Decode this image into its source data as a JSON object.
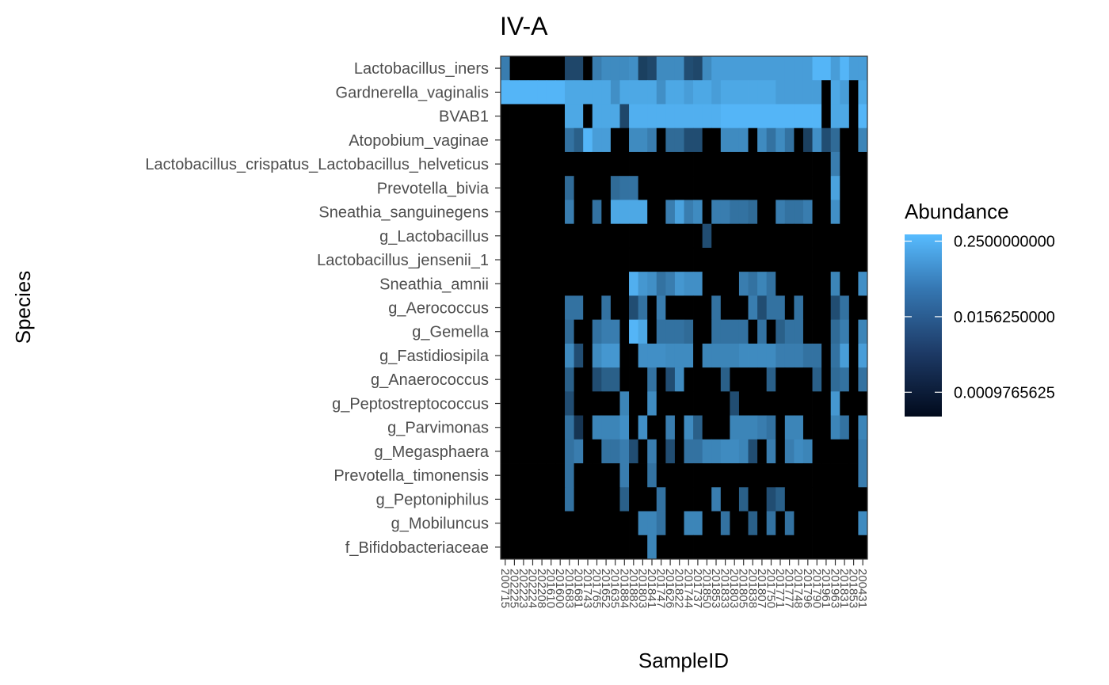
{
  "chart_data": {
    "type": "heatmap",
    "title": "IV-A",
    "xlabel": "SampleID",
    "ylabel": "Species",
    "legend": {
      "title": "Abundance",
      "position": "right",
      "scale": "log2",
      "breaks": [
        0.25,
        0.015625,
        0.0009765625
      ],
      "break_labels": [
        "0.2500000000",
        "0.0156250000",
        "0.0009765625"
      ],
      "low_color": "#010a1c",
      "high_color": "#57bcff",
      "zero_color": "#000000"
    },
    "species": [
      "Lactobacillus_iners",
      "Gardnerella_vaginalis",
      "BVAB1",
      "Atopobium_vaginae",
      "Lactobacillus_crispatus_Lactobacillus_helveticus",
      "Prevotella_bivia",
      "Sneathia_sanguinegens",
      "g_Lactobacillus",
      "Lactobacillus_jensenii_1",
      "Sneathia_amnii",
      "g_Aerococcus",
      "g_Gemella",
      "g_Fastidiosipila",
      "g_Anaerococcus",
      "g_Peptostreptococcus",
      "g_Parvimonas",
      "g_Megasphaera",
      "Prevotella_timonensis",
      "g_Peptoniphilus",
      "g_Mobiluncus",
      "f_Bifidobacteriaceae"
    ],
    "samples": [
      "200715",
      "202225",
      "202223",
      "202224",
      "202208",
      "201610",
      "201600",
      "201683",
      "201681",
      "201743",
      "201765",
      "201652",
      "201635",
      "201884",
      "201882",
      "201803",
      "201841",
      "201747",
      "201626",
      "201822",
      "201744",
      "201737",
      "201850",
      "201853",
      "201833",
      "201803",
      "201805",
      "201838",
      "201807",
      "201750",
      "201771",
      "201777",
      "201748",
      "201796",
      "201790",
      "201961",
      "201963",
      "201831",
      "201853",
      "200431"
    ],
    "cells": [
      [
        "0.03",
        "0",
        "0",
        "0",
        "0",
        "0",
        "0",
        "0.004",
        "0.004",
        "0",
        "0.03",
        "0.05",
        "0.05",
        "0.05",
        "0.06",
        "0.003",
        "0.004",
        "0.05",
        "0.05",
        "0.05",
        "0.005",
        "0.004",
        "0.05",
        "0.1",
        "0.1",
        "0.1",
        "0.1",
        "0.1",
        "0.1",
        "0.1",
        "0.1",
        "0.1",
        "0.1",
        "0.1",
        "0.25",
        "0.25",
        "0.1",
        "0.25",
        "0.1",
        "0.1"
      ],
      [
        "0.25",
        "0.25",
        "0.25",
        "0.25",
        "0.25",
        "0.25",
        "0.25",
        "0.15",
        "0.15",
        "0.15",
        "0.15",
        "0.15",
        "0.06",
        "0.15",
        "0.15",
        "0.15",
        "0.15",
        "0.06",
        "0.15",
        "0.15",
        "0.1",
        "0.15",
        "0.15",
        "0.1",
        "0.15",
        "0.15",
        "0.15",
        "0.15",
        "0.15",
        "0.15",
        "0.1",
        "0.1",
        "0.1",
        "0.1",
        "0.1",
        "0",
        "0.15",
        "0.1",
        "0",
        "0.15"
      ],
      [
        "0",
        "0",
        "0",
        "0",
        "0",
        "0",
        "0",
        "0.15",
        "0.15",
        "0",
        "0.15",
        "0.15",
        "0.15",
        "0.004",
        "0.2",
        "0.2",
        "0.2",
        "0.2",
        "0.2",
        "0.2",
        "0.2",
        "0.2",
        "0.2",
        "0.2",
        "0.25",
        "0.25",
        "0.25",
        "0.25",
        "0.25",
        "0.25",
        "0.25",
        "0.25",
        "0.25",
        "0.25",
        "0.25",
        "0",
        "0.15",
        "0.15",
        "0",
        "0.25"
      ],
      [
        "0",
        "0",
        "0",
        "0",
        "0",
        "0",
        "0",
        "0.02",
        "0.01",
        "0.25",
        "0.1",
        "0.1",
        "0",
        "0",
        "0.05",
        "0.05",
        "0.03",
        "0",
        "0.015",
        "0.015",
        "0.005",
        "0.005",
        "0",
        "0",
        "0.05",
        "0.05",
        "0.05",
        "0",
        "0.05",
        "0.02",
        "0.05",
        "0.02",
        "0",
        "0.003",
        "0.06",
        "0.005",
        "0.015",
        "0",
        "0",
        "0.04"
      ],
      [
        "0",
        "0",
        "0",
        "0",
        "0",
        "0",
        "0",
        "0",
        "0",
        "0",
        "0",
        "0",
        "0",
        "0",
        "0",
        "0",
        "0",
        "0",
        "0",
        "0",
        "0",
        "0",
        "0",
        "0",
        "0",
        "0",
        "0",
        "0",
        "0",
        "0",
        "0",
        "0",
        "0",
        "0",
        "0",
        "0",
        "0.03",
        "0",
        "0",
        "0"
      ],
      [
        "0",
        "0",
        "0",
        "0",
        "0",
        "0",
        "0",
        "0.015",
        "0",
        "0",
        "0",
        "0",
        "0.015",
        "0.02",
        "0.02",
        "0",
        "0",
        "0",
        "0",
        "0",
        "0",
        "0",
        "0",
        "0",
        "0",
        "0",
        "0",
        "0",
        "0",
        "0",
        "0",
        "0",
        "0",
        "0",
        "0",
        "0",
        "0.12",
        "0",
        "0",
        "0"
      ],
      [
        "0",
        "0",
        "0",
        "0",
        "0",
        "0",
        "0",
        "0.03",
        "0",
        "0",
        "0.02",
        "0",
        "0.15",
        "0.15",
        "0.15",
        "0.15",
        "0",
        "0",
        "0.03",
        "0.12",
        "0.03",
        "0.05",
        "0",
        "0.03",
        "0.03",
        "0.02",
        "0.02",
        "0.015",
        "0",
        "0",
        "0.03",
        "0.02",
        "0.02",
        "0.03",
        "0",
        "0",
        "0.06",
        "0",
        "0",
        "0"
      ],
      [
        "0",
        "0",
        "0",
        "0",
        "0",
        "0",
        "0",
        "0",
        "0",
        "0",
        "0",
        "0",
        "0",
        "0",
        "0",
        "0",
        "0",
        "0",
        "0",
        "0",
        "0",
        "0",
        "0.005",
        "0",
        "0",
        "0",
        "0",
        "0",
        "0",
        "0",
        "0",
        "0",
        "0",
        "0",
        "0",
        "0",
        "0",
        "0",
        "0",
        "0"
      ],
      [
        "0",
        "0",
        "0",
        "0",
        "0",
        "0",
        "0",
        "0",
        "0",
        "0",
        "0",
        "0",
        "0",
        "0",
        "0",
        "0",
        "0",
        "0",
        "0",
        "0",
        "0",
        "0",
        "0",
        "0",
        "0",
        "0",
        "0",
        "0",
        "0",
        "0",
        "0",
        "0",
        "0",
        "0",
        "0",
        "0",
        "0",
        "0",
        "0",
        "0"
      ],
      [
        "0",
        "0",
        "0",
        "0",
        "0",
        "0",
        "0",
        "0",
        "0",
        "0",
        "0",
        "0",
        "0",
        "0",
        "0.2",
        "0.08",
        "0.06",
        "0.02",
        "0.03",
        "0.08",
        "0.06",
        "0.06",
        "0",
        "0",
        "0",
        "0",
        "0.03",
        "0.02",
        "0.04",
        "0.02",
        "0",
        "0",
        "0",
        "0",
        "0",
        "0",
        "0.04",
        "0",
        "0",
        "0.06"
      ],
      [
        "0",
        "0",
        "0",
        "0",
        "0",
        "0",
        "0",
        "0.02",
        "0.02",
        "0",
        "0",
        "0.02",
        "0",
        "0",
        "0.005",
        "0.02",
        "0",
        "0.03",
        "0",
        "0",
        "0",
        "0",
        "0",
        "0.02",
        "0",
        "0",
        "0",
        "0.03",
        "0.005",
        "0.02",
        "0.02",
        "0",
        "0.02",
        "0",
        "0",
        "0",
        "0.005",
        "0.02",
        "0",
        "0"
      ],
      [
        "0",
        "0",
        "0",
        "0",
        "0",
        "0",
        "0",
        "0.015",
        "0",
        "0",
        "0.02",
        "0.03",
        "0.03",
        "0",
        "0.25",
        "0.15",
        "0",
        "0.02",
        "0.02",
        "0.02",
        "0.015",
        "0",
        "0",
        "0.02",
        "0.02",
        "0.02",
        "0.02",
        "0",
        "0.02",
        "0",
        "0.01",
        "0.02",
        "0.02",
        "0",
        "0",
        "0",
        "0.015",
        "0.03",
        "0",
        "0.04"
      ],
      [
        "0",
        "0",
        "0",
        "0",
        "0",
        "0",
        "0",
        "0.05",
        "0.005",
        "0",
        "0.05",
        "0.08",
        "0.08",
        "0",
        "0",
        "0.06",
        "0.06",
        "0.06",
        "0.05",
        "0.05",
        "0.05",
        "0",
        "0.04",
        "0.04",
        "0.04",
        "0.04",
        "0.05",
        "0.05",
        "0.05",
        "0.05",
        "0.03",
        "0.03",
        "0.03",
        "0.02",
        "0.02",
        "0",
        "0.02",
        "0.1",
        "0",
        "0.1"
      ],
      [
        "0",
        "0",
        "0",
        "0",
        "0",
        "0",
        "0",
        "0.01",
        "0",
        "0",
        "0.005",
        "0.01",
        "0.01",
        "0",
        "0",
        "0",
        "0.02",
        "0",
        "0.005",
        "0.05",
        "0",
        "0",
        "0",
        "0",
        "0.01",
        "0",
        "0",
        "0",
        "0",
        "0.01",
        "0",
        "0",
        "0",
        "0",
        "0.01",
        "0",
        "0.015",
        "0.02",
        "0",
        "0.02"
      ],
      [
        "0",
        "0",
        "0",
        "0",
        "0",
        "0",
        "0",
        "0.005",
        "0",
        "0",
        "0",
        "0",
        "0",
        "0.04",
        "0",
        "0",
        "0.05",
        "0",
        "0",
        "0",
        "0",
        "0",
        "0",
        "0",
        "0",
        "0.005",
        "0",
        "0",
        "0",
        "0",
        "0",
        "0",
        "0",
        "0",
        "0",
        "0",
        "0.08",
        "0",
        "0",
        "0"
      ],
      [
        "0",
        "0",
        "0",
        "0",
        "0",
        "0",
        "0",
        "0.02",
        "0.002",
        "0",
        "0.04",
        "0.04",
        "0.04",
        "0.06",
        "0",
        "0.06",
        "0",
        "0",
        "0.03",
        "0",
        "0.05",
        "0.01",
        "0",
        "0",
        "0",
        "0.04",
        "0.04",
        "0.04",
        "0.03",
        "0.02",
        "0",
        "0.04",
        "0.04",
        "0",
        "0",
        "0",
        "0.04",
        "0.02",
        "0",
        "0.04"
      ],
      [
        "0",
        "0",
        "0",
        "0",
        "0",
        "0",
        "0",
        "0.02",
        "0.03",
        "0",
        "0",
        "0.02",
        "0.02",
        "0.03",
        "0.005",
        "0",
        "0.03",
        "0",
        "0.005",
        "0",
        "0.02",
        "0.02",
        "0.04",
        "0.04",
        "0.05",
        "0.05",
        "0.04",
        "0.005",
        "0",
        "0.03",
        "0",
        "0.03",
        "0.05",
        "0.04",
        "0",
        "0",
        "0",
        "0",
        "0",
        "0.03"
      ],
      [
        "0",
        "0",
        "0",
        "0",
        "0",
        "0",
        "0",
        "0.02",
        "0",
        "0",
        "0",
        "0",
        "0",
        "0.03",
        "0",
        "0",
        "0.02",
        "0",
        "0",
        "0",
        "0",
        "0",
        "0",
        "0",
        "0",
        "0",
        "0",
        "0",
        "0",
        "0",
        "0",
        "0",
        "0",
        "0",
        "0",
        "0",
        "0",
        "0",
        "0",
        "0.03"
      ],
      [
        "0",
        "0",
        "0",
        "0",
        "0",
        "0",
        "0",
        "0.02",
        "0",
        "0",
        "0",
        "0",
        "0",
        "0.01",
        "0",
        "0",
        "0",
        "0.02",
        "0",
        "0",
        "0",
        "0",
        "0",
        "0.03",
        "0",
        "0",
        "0.01",
        "0",
        "0",
        "0.005",
        "0.01",
        "0",
        "0",
        "0",
        "0",
        "0",
        "0",
        "0",
        "0",
        "0"
      ],
      [
        "0",
        "0",
        "0",
        "0",
        "0",
        "0",
        "0",
        "0",
        "0",
        "0",
        "0",
        "0",
        "0",
        "0",
        "0",
        "0.04",
        "0.04",
        "0.02",
        "0",
        "0",
        "0.04",
        "0.04",
        "0",
        "0",
        "0.02",
        "0",
        "0",
        "0.01",
        "0",
        "0.02",
        "0",
        "0.02",
        "0",
        "0",
        "0",
        "0",
        "0",
        "0",
        "0",
        "0.05"
      ],
      [
        "0",
        "0",
        "0",
        "0",
        "0",
        "0",
        "0",
        "0",
        "0",
        "0",
        "0",
        "0",
        "0",
        "0",
        "0",
        "0",
        "0.04",
        "0",
        "0",
        "0",
        "0",
        "0",
        "0",
        "0",
        "0",
        "0",
        "0",
        "0",
        "0",
        "0",
        "0",
        "0",
        "0",
        "0",
        "0",
        "0",
        "0",
        "0",
        "0",
        "0"
      ]
    ]
  }
}
